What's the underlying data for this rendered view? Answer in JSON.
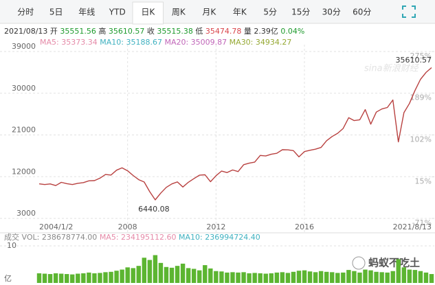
{
  "tabs": [
    "分时",
    "5日",
    "年线",
    "YTD",
    "日K",
    "周K",
    "月K",
    "年K",
    "5分",
    "15分",
    "30分",
    "60分"
  ],
  "active_tab_index": 4,
  "quote": {
    "date": "2021/08/13",
    "items": [
      {
        "label": "开",
        "value": "35551.56",
        "color": "#1d9a2c"
      },
      {
        "label": "高",
        "value": "35610.57",
        "color": "#1d9a2c"
      },
      {
        "label": "收",
        "value": "35515.38",
        "color": "#1d9a2c"
      },
      {
        "label": "低",
        "value": "35474.78",
        "color": "#d9444a"
      },
      {
        "label": "量",
        "value": "2.39亿",
        "color": "#333333"
      },
      {
        "value": "0.04%",
        "color": "#1d9a2c"
      }
    ]
  },
  "watermarks": [
    "sina新浪财经",
    "蚂蚁不吃土"
  ],
  "chart_data": [
    {
      "type": "line",
      "categories": [
        "2004/1/2",
        null,
        null,
        null,
        null,
        null,
        null,
        null,
        null,
        null,
        null,
        null,
        null,
        null,
        null,
        null,
        "2008",
        null,
        null,
        null,
        null,
        null,
        null,
        null,
        null,
        null,
        null,
        null,
        null,
        null,
        null,
        null,
        "2012",
        null,
        null,
        null,
        null,
        null,
        null,
        null,
        null,
        null,
        null,
        null,
        null,
        null,
        null,
        null,
        "2016",
        null,
        null,
        null,
        null,
        null,
        null,
        null,
        null,
        null,
        null,
        null,
        null,
        null,
        null,
        null,
        null,
        null,
        null,
        null,
        null,
        null,
        null,
        "2021/8/13"
      ],
      "values": [
        10450,
        10300,
        10430,
        10080,
        10780,
        10500,
        10300,
        10570,
        10720,
        11100,
        11150,
        11680,
        12460,
        12350,
        13400,
        13900,
        13260,
        12260,
        11350,
        10850,
        8780,
        7000,
        8450,
        9700,
        10430,
        10860,
        9770,
        10790,
        11580,
        12320,
        12410,
        10910,
        12220,
        13210,
        12880,
        13440,
        13100,
        14580,
        14910,
        15130,
        16580,
        16460,
        16830,
        17040,
        17820,
        17780,
        17620,
        16280,
        17420,
        17690,
        17930,
        18310,
        19760,
        20660,
        21350,
        22400,
        24720,
        24100,
        24270,
        26460,
        23330,
        25930,
        26600,
        26920,
        28540,
        19500,
        25810,
        27780,
        30600,
        33000,
        34500,
        35515
      ],
      "color": "#b8403f",
      "ylim": [
        3000,
        39000
      ],
      "yticks": [
        3000,
        12000,
        21000,
        30000,
        39000
      ],
      "y2lim": [
        -71,
        275
      ],
      "y2ticks": [
        {
          "value": -71,
          "label": "-71%"
        },
        {
          "value": 15,
          "label": "15%"
        },
        {
          "value": 102,
          "label": "102%"
        },
        {
          "value": 189,
          "label": "189%"
        },
        {
          "value": 275,
          "label": "275%"
        }
      ],
      "grid": true,
      "annotations": [
        {
          "label": "35610.57",
          "value": 35610.57
        },
        {
          "label": "6440.08",
          "value": 6440.08
        }
      ],
      "ma_legend": [
        {
          "name": "MA5:",
          "value": 35373.34,
          "color": "#e58aa8"
        },
        {
          "name": "MA10:",
          "value": 35188.67,
          "color": "#3fb1c0"
        },
        {
          "name": "MA20:",
          "value": 35009.87,
          "color": "#c065b8"
        },
        {
          "name": "MA30:",
          "value": 34934.27,
          "color": "#95a832"
        }
      ]
    },
    {
      "type": "bar",
      "title": "成交",
      "legend": [
        {
          "name": "VOL:",
          "value": "238678774.00",
          "color": "#888888"
        },
        {
          "name": "MA5:",
          "value": "234195112.60",
          "color": "#e58aa8"
        },
        {
          "name": "MA10:",
          "value": "236994724.40",
          "color": "#3fb1c0"
        }
      ],
      "values": [
        2.6,
        2.5,
        2.4,
        2.6,
        2.5,
        2.4,
        2.3,
        2.5,
        2.6,
        2.8,
        2.6,
        2.7,
        2.9,
        3.0,
        3.3,
        3.6,
        4.2,
        4.0,
        4.6,
        6.8,
        6.2,
        7.5,
        5.4,
        4.3,
        4.1,
        4.6,
        5.2,
        4.0,
        3.8,
        3.4,
        4.8,
        3.9,
        3.2,
        3.1,
        2.8,
        2.9,
        2.8,
        2.9,
        2.6,
        2.7,
        2.6,
        2.5,
        2.6,
        2.8,
        2.9,
        2.7,
        3.0,
        3.3,
        3.4,
        3.1,
        2.9,
        3.2,
        3.0,
        2.9,
        2.7,
        2.8,
        3.5,
        3.2,
        2.8,
        3.6,
        3.4,
        3.0,
        2.9,
        2.8,
        3.2,
        6.4,
        4.2,
        3.6,
        3.5,
        3.2,
        2.8,
        2.4
      ],
      "color": "#5cb531",
      "ylim": [
        0,
        10
      ],
      "yticks": [
        10
      ],
      "unit": "亿"
    }
  ]
}
